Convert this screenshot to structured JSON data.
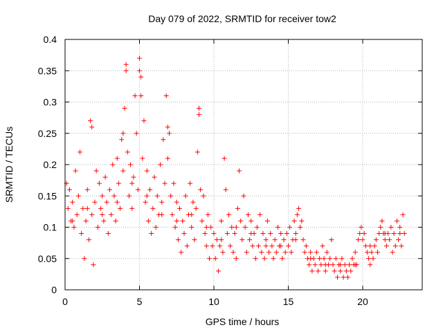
{
  "chart_data": {
    "type": "scatter",
    "title": "Day 079 of 2022, SRMTID for receiver tow2",
    "xlabel": "GPS time / hours",
    "ylabel": "SRMTID / TECUs",
    "xlim": [
      0,
      24
    ],
    "ylim": [
      0,
      0.4
    ],
    "grid": true,
    "marker": "+",
    "color": "#ff0000",
    "x_ticks": [
      {
        "value": 0,
        "label": "0"
      },
      {
        "value": 5,
        "label": "5"
      },
      {
        "value": 10,
        "label": "10"
      },
      {
        "value": 15,
        "label": "15"
      },
      {
        "value": 20,
        "label": "20"
      }
    ],
    "y_ticks": [
      {
        "value": 0,
        "label": "0"
      },
      {
        "value": 0.05,
        "label": "0.05"
      },
      {
        "value": 0.1,
        "label": "0.1"
      },
      {
        "value": 0.15,
        "label": "0.15"
      },
      {
        "value": 0.2,
        "label": "0.2"
      },
      {
        "value": 0.25,
        "label": "0.25"
      },
      {
        "value": 0.3,
        "label": "0.3"
      },
      {
        "value": 0.35,
        "label": "0.35"
      },
      {
        "value": 0.4,
        "label": "0.4"
      }
    ],
    "series": [
      {
        "name": "tow2",
        "points": [
          [
            0.1,
            0.17
          ],
          [
            0.2,
            0.13
          ],
          [
            0.3,
            0.16
          ],
          [
            0.4,
            0.11
          ],
          [
            0.5,
            0.14
          ],
          [
            0.6,
            0.1
          ],
          [
            0.7,
            0.19
          ],
          [
            0.8,
            0.12
          ],
          [
            0.9,
            0.15
          ],
          [
            1.0,
            0.22
          ],
          [
            1.1,
            0.09
          ],
          [
            1.2,
            0.13
          ],
          [
            1.3,
            0.05
          ],
          [
            1.4,
            0.11
          ],
          [
            1.5,
            0.16
          ],
          [
            1.6,
            0.08
          ],
          [
            1.7,
            0.27
          ],
          [
            1.8,
            0.12
          ],
          [
            1.9,
            0.04
          ],
          [
            2.0,
            0.14
          ],
          [
            2.1,
            0.19
          ],
          [
            2.2,
            0.1
          ],
          [
            2.3,
            0.17
          ],
          [
            2.4,
            0.13
          ],
          [
            2.5,
            0.15
          ],
          [
            2.6,
            0.11
          ],
          [
            2.7,
            0.18
          ],
          [
            2.8,
            0.14
          ],
          [
            2.9,
            0.09
          ],
          [
            3.0,
            0.16
          ],
          [
            3.1,
            0.12
          ],
          [
            3.2,
            0.2
          ],
          [
            3.3,
            0.15
          ],
          [
            3.4,
            0.11
          ],
          [
            3.5,
            0.21
          ],
          [
            3.6,
            0.17
          ],
          [
            3.7,
            0.13
          ],
          [
            3.8,
            0.24
          ],
          [
            3.9,
            0.19
          ],
          [
            4.0,
            0.29
          ],
          [
            4.1,
            0.36
          ],
          [
            4.2,
            0.22
          ],
          [
            4.3,
            0.15
          ],
          [
            4.4,
            0.2
          ],
          [
            4.5,
            0.13
          ],
          [
            4.6,
            0.18
          ],
          [
            4.7,
            0.31
          ],
          [
            4.8,
            0.25
          ],
          [
            4.9,
            0.16
          ],
          [
            5.0,
            0.37
          ],
          [
            5.1,
            0.34
          ],
          [
            5.2,
            0.21
          ],
          [
            5.3,
            0.27
          ],
          [
            5.4,
            0.14
          ],
          [
            5.5,
            0.19
          ],
          [
            5.6,
            0.11
          ],
          [
            5.7,
            0.16
          ],
          [
            5.8,
            0.09
          ],
          [
            5.9,
            0.13
          ],
          [
            6.0,
            0.18
          ],
          [
            6.1,
            0.1
          ],
          [
            6.2,
            0.15
          ],
          [
            6.3,
            0.12
          ],
          [
            6.4,
            0.2
          ],
          [
            6.5,
            0.14
          ],
          [
            6.6,
            0.24
          ],
          [
            6.7,
            0.17
          ],
          [
            6.8,
            0.31
          ],
          [
            6.9,
            0.21
          ],
          [
            7.0,
            0.25
          ],
          [
            7.1,
            0.15
          ],
          [
            7.2,
            0.12
          ],
          [
            7.3,
            0.17
          ],
          [
            7.4,
            0.1
          ],
          [
            7.5,
            0.14
          ],
          [
            7.6,
            0.08
          ],
          [
            7.7,
            0.13
          ],
          [
            7.8,
            0.06
          ],
          [
            7.9,
            0.11
          ],
          [
            8.0,
            0.09
          ],
          [
            8.1,
            0.15
          ],
          [
            8.2,
            0.07
          ],
          [
            8.3,
            0.12
          ],
          [
            8.4,
            0.17
          ],
          [
            8.5,
            0.1
          ],
          [
            8.6,
            0.14
          ],
          [
            8.7,
            0.08
          ],
          [
            8.8,
            0.13
          ],
          [
            8.9,
            0.22
          ],
          [
            9.0,
            0.29
          ],
          [
            9.1,
            0.16
          ],
          [
            9.2,
            0.11
          ],
          [
            9.3,
            0.15
          ],
          [
            9.4,
            0.09
          ],
          [
            9.5,
            0.07
          ],
          [
            9.6,
            0.12
          ],
          [
            9.7,
            0.05
          ],
          [
            9.8,
            0.1
          ],
          [
            9.9,
            0.07
          ],
          [
            10.0,
            0.09
          ],
          [
            10.1,
            0.05
          ],
          [
            10.2,
            0.08
          ],
          [
            10.3,
            0.03
          ],
          [
            10.4,
            0.07
          ],
          [
            10.5,
            0.11
          ],
          [
            10.6,
            0.06
          ],
          [
            10.7,
            0.21
          ],
          [
            10.8,
            0.16
          ],
          [
            10.9,
            0.09
          ],
          [
            11.0,
            0.12
          ],
          [
            11.1,
            0.07
          ],
          [
            11.2,
            0.1
          ],
          [
            11.3,
            0.06
          ],
          [
            11.4,
            0.09
          ],
          [
            11.5,
            0.05
          ],
          [
            11.6,
            0.13
          ],
          [
            11.7,
            0.19
          ],
          [
            11.8,
            0.11
          ],
          [
            11.9,
            0.08
          ],
          [
            12.0,
            0.15
          ],
          [
            12.1,
            0.1
          ],
          [
            12.2,
            0.06
          ],
          [
            12.3,
            0.12
          ],
          [
            12.4,
            0.08
          ],
          [
            12.5,
            0.11
          ],
          [
            12.6,
            0.07
          ],
          [
            12.7,
            0.09
          ],
          [
            12.8,
            0.05
          ],
          [
            12.9,
            0.1
          ],
          [
            13.0,
            0.07
          ],
          [
            13.1,
            0.12
          ],
          [
            13.2,
            0.06
          ],
          [
            13.3,
            0.09
          ],
          [
            13.4,
            0.05
          ],
          [
            13.5,
            0.08
          ],
          [
            13.6,
            0.11
          ],
          [
            13.7,
            0.06
          ],
          [
            13.8,
            0.09
          ],
          [
            13.9,
            0.07
          ],
          [
            14.0,
            0.05
          ],
          [
            14.1,
            0.08
          ],
          [
            14.2,
            0.06
          ],
          [
            14.3,
            0.1
          ],
          [
            14.4,
            0.07
          ],
          [
            14.5,
            0.09
          ],
          [
            14.6,
            0.05
          ],
          [
            14.7,
            0.08
          ],
          [
            14.8,
            0.06
          ],
          [
            14.9,
            0.09
          ],
          [
            15.0,
            0.07
          ],
          [
            15.1,
            0.1
          ],
          [
            15.2,
            0.06
          ],
          [
            15.3,
            0.08
          ],
          [
            15.4,
            0.11
          ],
          [
            15.5,
            0.09
          ],
          [
            15.6,
            0.12
          ],
          [
            15.7,
            0.13
          ],
          [
            15.8,
            0.1
          ],
          [
            15.9,
            0.11
          ],
          [
            16.0,
            0.08
          ],
          [
            16.1,
            0.06
          ],
          [
            16.2,
            0.07
          ],
          [
            16.3,
            0.05
          ],
          [
            16.4,
            0.04
          ],
          [
            16.5,
            0.06
          ],
          [
            16.6,
            0.03
          ],
          [
            16.7,
            0.05
          ],
          [
            16.8,
            0.04
          ],
          [
            16.9,
            0.06
          ],
          [
            17.0,
            0.03
          ],
          [
            17.1,
            0.05
          ],
          [
            17.2,
            0.04
          ],
          [
            17.3,
            0.07
          ],
          [
            17.4,
            0.05
          ],
          [
            17.5,
            0.03
          ],
          [
            17.6,
            0.06
          ],
          [
            17.7,
            0.04
          ],
          [
            17.8,
            0.05
          ],
          [
            17.9,
            0.08
          ],
          [
            18.0,
            0.04
          ],
          [
            18.1,
            0.03
          ],
          [
            18.2,
            0.05
          ],
          [
            18.3,
            0.02
          ],
          [
            18.4,
            0.04
          ],
          [
            18.5,
            0.03
          ],
          [
            18.6,
            0.05
          ],
          [
            18.7,
            0.02
          ],
          [
            18.8,
            0.04
          ],
          [
            18.9,
            0.03
          ],
          [
            19.0,
            0.02
          ],
          [
            19.1,
            0.04
          ],
          [
            19.2,
            0.03
          ],
          [
            19.3,
            0.05
          ],
          [
            19.4,
            0.04
          ],
          [
            19.5,
            0.06
          ],
          [
            19.6,
            0.04
          ],
          [
            19.7,
            0.08
          ],
          [
            19.8,
            0.09
          ],
          [
            19.9,
            0.1
          ],
          [
            20.0,
            0.08
          ],
          [
            20.1,
            0.09
          ],
          [
            20.2,
            0.07
          ],
          [
            20.3,
            0.06
          ],
          [
            20.4,
            0.05
          ],
          [
            20.5,
            0.04
          ],
          [
            20.6,
            0.06
          ],
          [
            20.7,
            0.05
          ],
          [
            20.8,
            0.07
          ],
          [
            20.9,
            0.08
          ],
          [
            21.0,
            0.06
          ],
          [
            21.1,
            0.09
          ],
          [
            21.2,
            0.1
          ],
          [
            21.3,
            0.11
          ],
          [
            21.4,
            0.09
          ],
          [
            21.5,
            0.08
          ],
          [
            21.6,
            0.07
          ],
          [
            21.7,
            0.09
          ],
          [
            21.8,
            0.08
          ],
          [
            21.9,
            0.1
          ],
          [
            22.0,
            0.06
          ],
          [
            22.1,
            0.09
          ],
          [
            22.2,
            0.07
          ],
          [
            22.3,
            0.11
          ],
          [
            22.4,
            0.08
          ],
          [
            22.5,
            0.1
          ],
          [
            22.6,
            0.07
          ],
          [
            22.7,
            0.12
          ],
          [
            22.8,
            0.09
          ],
          [
            0.5,
            0.11
          ],
          [
            1.5,
            0.13
          ],
          [
            2.5,
            0.12
          ],
          [
            3.5,
            0.14
          ],
          [
            4.5,
            0.17
          ],
          [
            5.5,
            0.15
          ],
          [
            6.5,
            0.12
          ],
          [
            7.5,
            0.11
          ],
          [
            8.5,
            0.12
          ],
          [
            9.5,
            0.1
          ],
          [
            10.5,
            0.08
          ],
          [
            11.5,
            0.1
          ],
          [
            12.5,
            0.09
          ],
          [
            13.5,
            0.07
          ],
          [
            14.5,
            0.07
          ],
          [
            15.5,
            0.08
          ],
          [
            16.5,
            0.05
          ],
          [
            17.5,
            0.04
          ],
          [
            18.5,
            0.04
          ],
          [
            19.5,
            0.04
          ],
          [
            20.5,
            0.07
          ],
          [
            21.5,
            0.09
          ],
          [
            22.5,
            0.09
          ],
          [
            1.8,
            0.26
          ],
          [
            4.1,
            0.35
          ],
          [
            5.0,
            0.35
          ],
          [
            5.1,
            0.31
          ],
          [
            6.9,
            0.26
          ],
          [
            9.0,
            0.28
          ],
          [
            3.9,
            0.25
          ]
        ]
      }
    ]
  }
}
